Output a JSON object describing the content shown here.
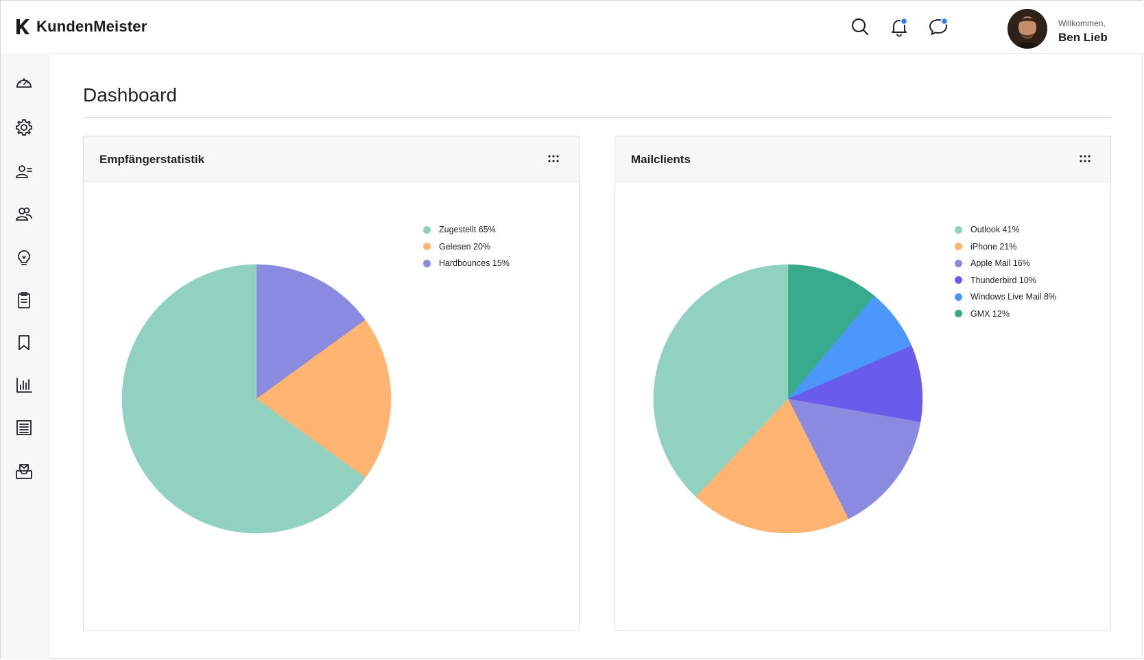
{
  "app": {
    "name": "KundenMeister"
  },
  "header": {
    "welcome_label": "Willkommen,",
    "user_name": "Ben Lieb",
    "icons": [
      "search-icon",
      "bell-icon",
      "chat-icon"
    ],
    "notification_dot_color": "#2e7cf6"
  },
  "sidebar": {
    "items": [
      {
        "icon": "dashboard-gauge-icon"
      },
      {
        "icon": "gear-icon"
      },
      {
        "icon": "user-list-icon"
      },
      {
        "icon": "users-group-icon"
      },
      {
        "icon": "lightbulb-icon"
      },
      {
        "icon": "clipboard-icon"
      },
      {
        "icon": "bookmark-icon"
      },
      {
        "icon": "bar-chart-icon"
      },
      {
        "icon": "report-list-icon"
      },
      {
        "icon": "mail-inbox-icon"
      }
    ]
  },
  "page": {
    "title": "Dashboard"
  },
  "cards": [
    {
      "title": "Empfängerstatistik",
      "menu_icon": "dots-grid-icon"
    },
    {
      "title": "Mailclients",
      "menu_icon": "dots-grid-icon"
    }
  ],
  "chart_data": [
    {
      "type": "pie",
      "title": "Empfängerstatistik",
      "legend_position": "top-right",
      "slices": [
        {
          "label": "Zugestellt",
          "value": 65,
          "color": "#90d2bf"
        },
        {
          "label": "Gelesen",
          "value": 20,
          "color": "#ffb571"
        },
        {
          "label": "Hardbounces",
          "value": 15,
          "color": "#8a8ae0"
        }
      ]
    },
    {
      "type": "pie",
      "title": "Mailclients",
      "legend_position": "top-right",
      "slices": [
        {
          "label": "Outlook",
          "value": 41,
          "color": "#90d2bf"
        },
        {
          "label": "iPhone",
          "value": 21,
          "color": "#ffb571"
        },
        {
          "label": "Apple Mail",
          "value": 16,
          "color": "#8a8ae0"
        },
        {
          "label": "Thunderbird",
          "value": 10,
          "color": "#6a5ceb"
        },
        {
          "label": "Windows Live Mail",
          "value": 8,
          "color": "#4c97fb"
        },
        {
          "label": "GMX",
          "value": 12,
          "color": "#37ab8b"
        }
      ]
    }
  ]
}
